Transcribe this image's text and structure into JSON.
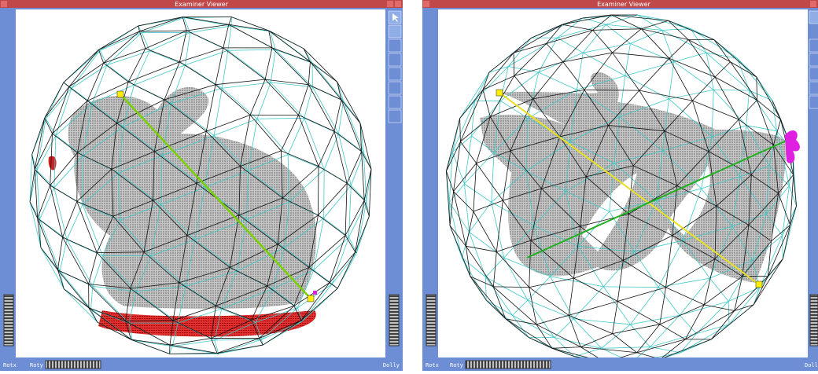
{
  "windows": [
    {
      "title": "Examiner Viewer",
      "rotx": "Rotx",
      "roty": "Roty",
      "dolly": "Dolly"
    },
    {
      "title": "Examiner Viewer",
      "rotx": "Rotx",
      "roty": "Roty",
      "dolly": "Dolly"
    }
  ]
}
